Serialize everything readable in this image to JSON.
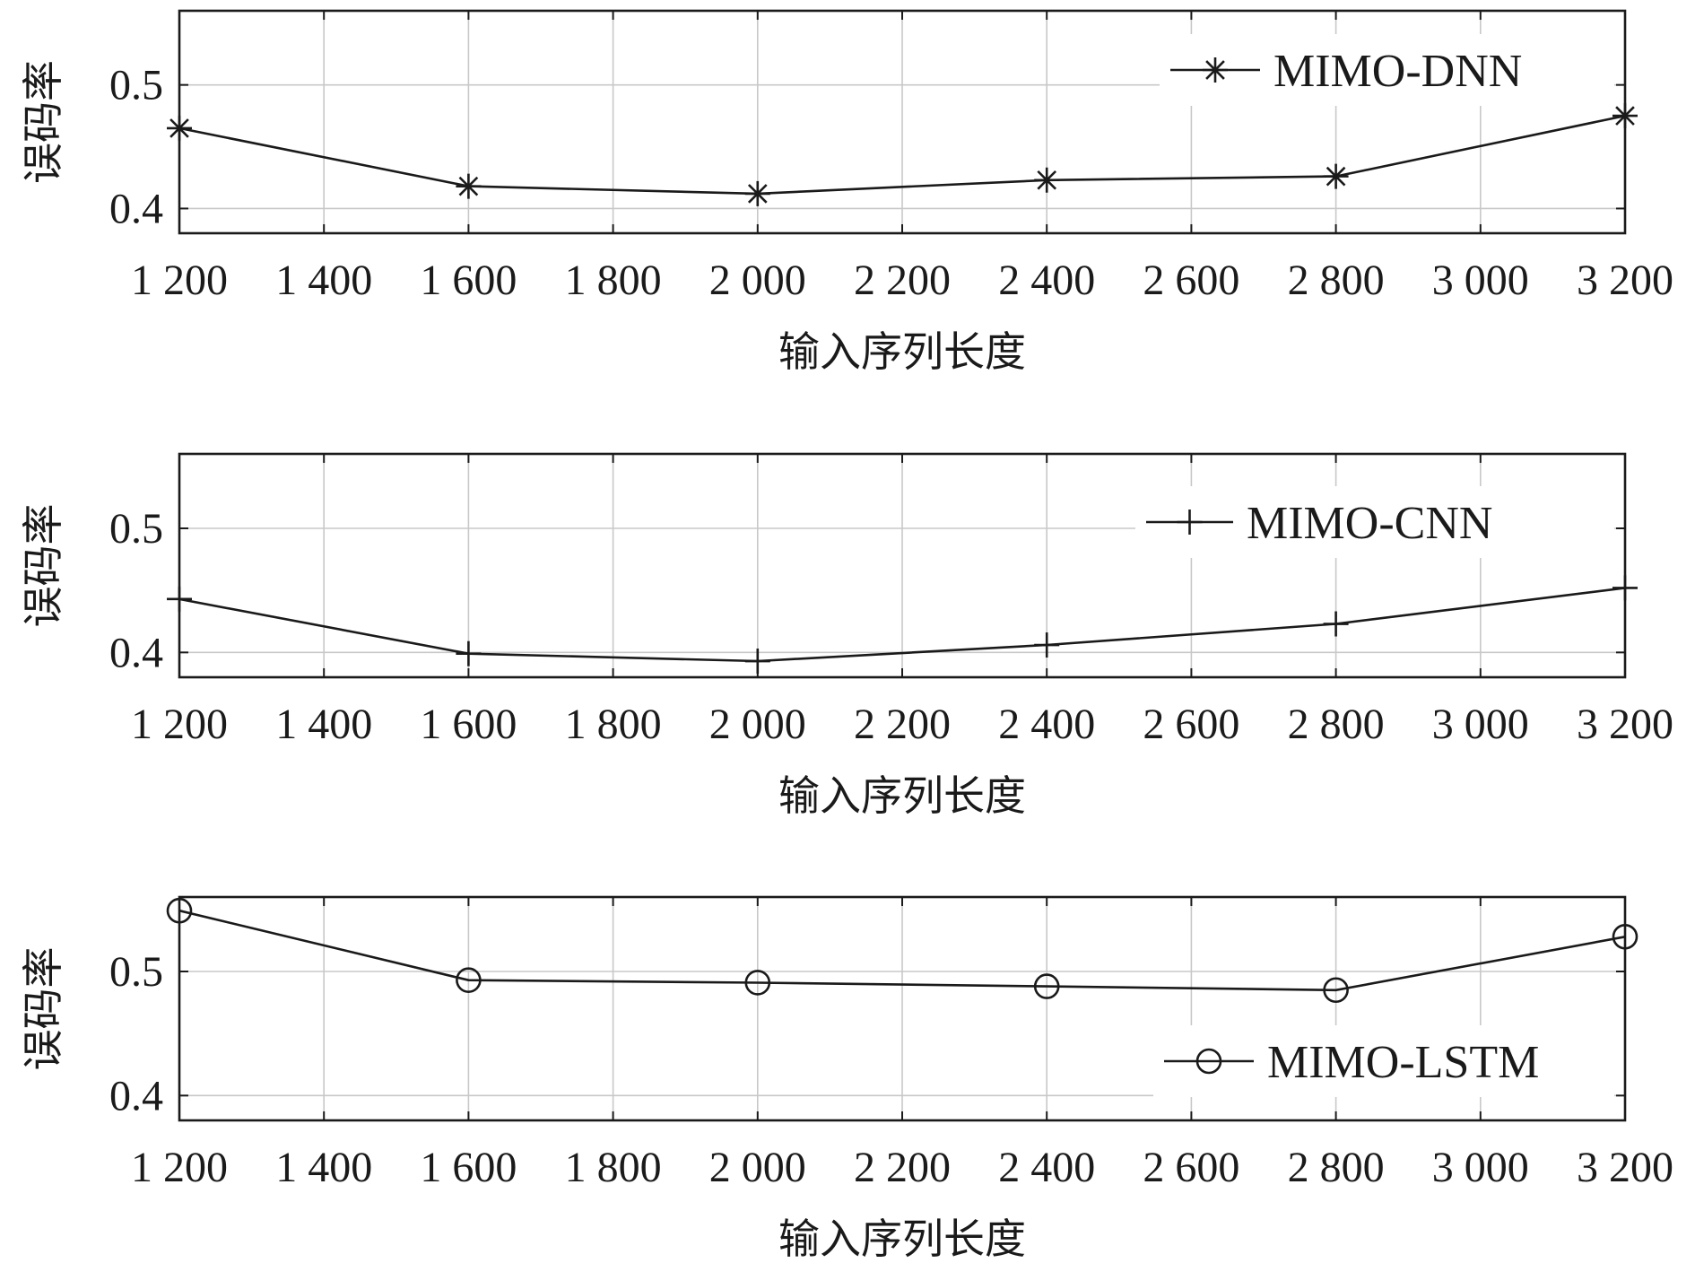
{
  "chart_data": [
    {
      "type": "line",
      "xlabel": "输入序列长度",
      "ylabel": "误码率",
      "x": [
        1200,
        1600,
        2000,
        2400,
        2800,
        3200
      ],
      "xlim": [
        1200,
        3200
      ],
      "ylim": [
        0.38,
        0.56
      ],
      "x_ticks": [
        1200,
        1400,
        1600,
        1800,
        2000,
        2200,
        2400,
        2600,
        2800,
        3000,
        3200
      ],
      "x_tick_labels": [
        "1 200",
        "1 400",
        "1 600",
        "1 800",
        "2 000",
        "2 200",
        "2 400",
        "2 600",
        "2 800",
        "3 000",
        "3 200"
      ],
      "y_ticks": [
        0.4,
        0.5
      ],
      "y_tick_labels": [
        "0.4",
        "0.5"
      ],
      "grid": true,
      "legend_position": "top-right",
      "series": [
        {
          "name": "MIMO-DNN",
          "marker": "asterisk",
          "values": [
            0.465,
            0.418,
            0.412,
            0.423,
            0.426,
            0.475
          ]
        }
      ]
    },
    {
      "type": "line",
      "xlabel": "输入序列长度",
      "ylabel": "误码率",
      "x": [
        1200,
        1600,
        2000,
        2400,
        2800,
        3200
      ],
      "xlim": [
        1200,
        3200
      ],
      "ylim": [
        0.38,
        0.56
      ],
      "x_ticks": [
        1200,
        1400,
        1600,
        1800,
        2000,
        2200,
        2400,
        2600,
        2800,
        3000,
        3200
      ],
      "x_tick_labels": [
        "1 200",
        "1 400",
        "1 600",
        "1 800",
        "2 000",
        "2 200",
        "2 400",
        "2 600",
        "2 800",
        "3 000",
        "3 200"
      ],
      "y_ticks": [
        0.4,
        0.5
      ],
      "y_tick_labels": [
        "0.4",
        "0.5"
      ],
      "grid": true,
      "legend_position": "top-right",
      "series": [
        {
          "name": "MIMO-CNN",
          "marker": "plus",
          "values": [
            0.443,
            0.399,
            0.393,
            0.406,
            0.423,
            0.452
          ]
        }
      ]
    },
    {
      "type": "line",
      "xlabel": "输入序列长度",
      "ylabel": "误码率",
      "x": [
        1200,
        1600,
        2000,
        2400,
        2800,
        3200
      ],
      "xlim": [
        1200,
        3200
      ],
      "ylim": [
        0.38,
        0.56
      ],
      "x_ticks": [
        1200,
        1400,
        1600,
        1800,
        2000,
        2200,
        2400,
        2600,
        2800,
        3000,
        3200
      ],
      "x_tick_labels": [
        "1 200",
        "1 400",
        "1 600",
        "1 800",
        "2 000",
        "2 200",
        "2 400",
        "2 600",
        "2 800",
        "3 000",
        "3 200"
      ],
      "y_ticks": [
        0.4,
        0.5
      ],
      "y_tick_labels": [
        "0.4",
        "0.5"
      ],
      "grid": true,
      "legend_position": "bottom-right",
      "series": [
        {
          "name": "MIMO-LSTM",
          "marker": "circle",
          "values": [
            0.549,
            0.493,
            0.491,
            0.488,
            0.485,
            0.528
          ]
        }
      ]
    }
  ]
}
